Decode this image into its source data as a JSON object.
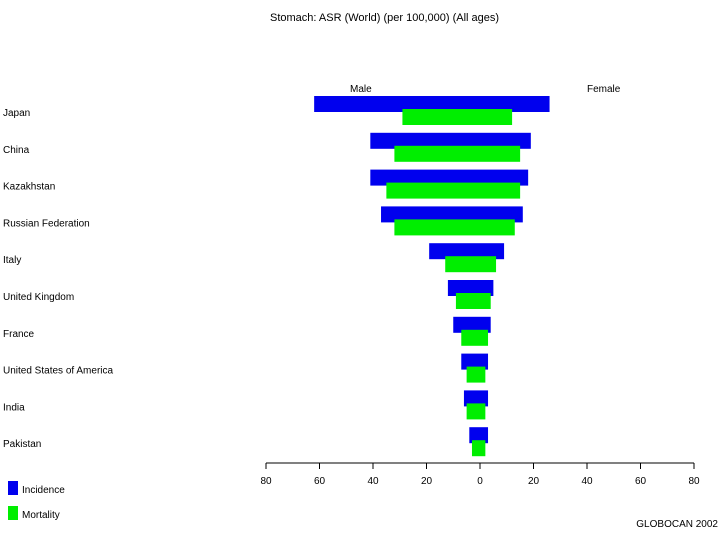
{
  "chart_data": {
    "type": "bar",
    "orientation": "horizontal",
    "title": "Stomach: ASR (World) (per 100,000) (All ages)",
    "side_labels": {
      "left": "Male",
      "right": "Female"
    },
    "categories": [
      "Japan",
      "China",
      "Kazakhstan",
      "Russian Federation",
      "Italy",
      "United Kingdom",
      "France",
      "United States of America",
      "India",
      "Pakistan"
    ],
    "series": [
      {
        "name": "Incidence",
        "color": "#0000ee",
        "male": [
          62,
          41,
          41,
          37,
          19,
          12,
          10,
          7,
          6,
          4
        ],
        "female": [
          26,
          19,
          18,
          16,
          9,
          5,
          4,
          3,
          3,
          3
        ]
      },
      {
        "name": "Mortality",
        "color": "#00ee00",
        "male": [
          29,
          32,
          35,
          32,
          13,
          9,
          7,
          5,
          5,
          3
        ],
        "female": [
          12,
          15,
          15,
          13,
          6,
          4,
          3,
          2,
          2,
          2
        ]
      }
    ],
    "x_ticks": [
      "80",
      "60",
      "40",
      "20",
      "0",
      "20",
      "40",
      "60",
      "80"
    ],
    "xlim": [
      -80,
      80
    ],
    "grid": false,
    "legend_position": "bottom-left"
  },
  "footer": "GLOBOCAN 2002"
}
